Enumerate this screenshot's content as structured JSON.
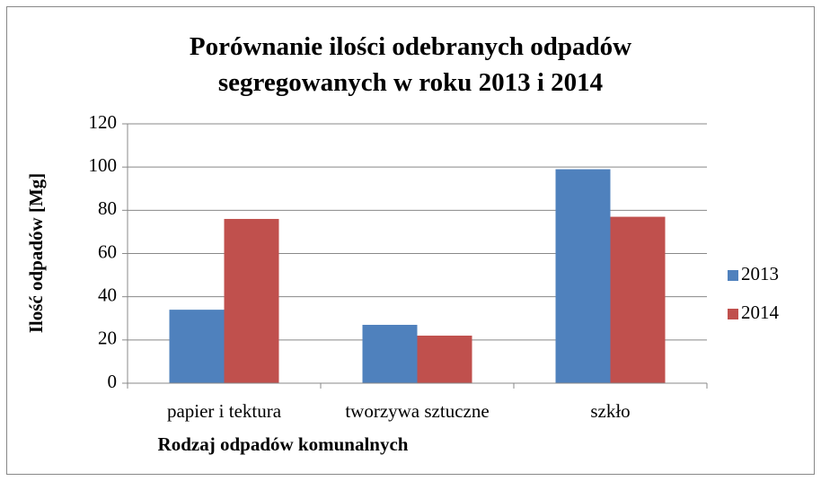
{
  "chart_data": {
    "type": "bar",
    "title": "Porównanie ilości odebranych odpadów segregowanych w roku 2013 i 2014",
    "x_label": "Rodzaj odpadów komunalnych",
    "y_label": "Ilość odpadów [Mg]",
    "categories": [
      "papier i tektura",
      "tworzywa sztuczne",
      "szkło"
    ],
    "series": [
      {
        "name": "2013",
        "color": "#4f81bd",
        "values": [
          34,
          27,
          99
        ]
      },
      {
        "name": "2014",
        "color": "#c0504d",
        "values": [
          76,
          22,
          77
        ]
      }
    ],
    "ylim": [
      0,
      120
    ],
    "yticks": [
      0,
      20,
      40,
      60,
      80,
      100,
      120
    ],
    "grid": true,
    "legend": "right"
  }
}
